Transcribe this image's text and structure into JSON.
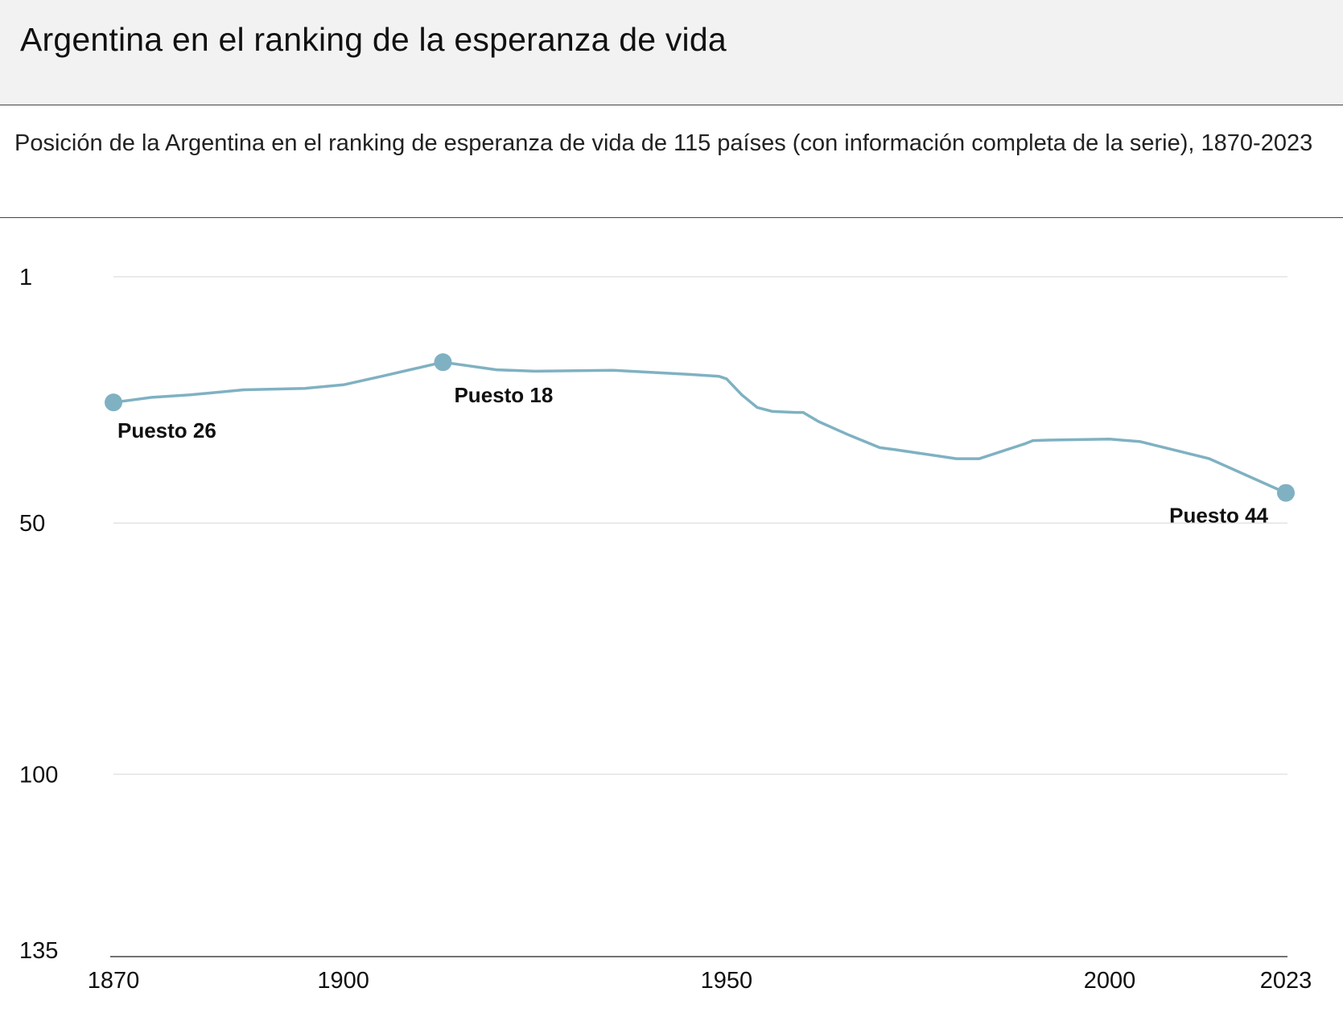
{
  "header": {
    "title": "Argentina en el ranking de la esperanza de vida"
  },
  "subtitle": "Posición de la Argentina en el ranking de esperanza de vida de 115 países (con información completa de la serie), 1870-2023",
  "colors": {
    "line": "#7fb1c2",
    "grid": "#e3e3e3",
    "axis": "#444444"
  },
  "chart_data": {
    "type": "line",
    "title": "Argentina en el ranking de la esperanza de vida",
    "xlabel": "",
    "ylabel": "",
    "y_inverted": true,
    "ylim": [
      1,
      135
    ],
    "xlim": [
      1870,
      2023
    ],
    "y_ticks": [
      "1",
      "50",
      "100",
      "135"
    ],
    "y_tick_values": [
      1,
      50,
      100,
      135
    ],
    "x_ticks": [
      "1870",
      "1900",
      "1950",
      "2000",
      "2023"
    ],
    "x_tick_values": [
      1870,
      1900,
      1950,
      2000,
      2023
    ],
    "grid": true,
    "series": [
      {
        "name": "Argentina",
        "x": [
          1870,
          1875,
          1880,
          1887,
          1895,
          1900,
          1905,
          1913,
          1920,
          1925,
          1935,
          1945,
          1949,
          1950,
          1952,
          1954,
          1956,
          1959,
          1960,
          1962,
          1966,
          1970,
          1972,
          1980,
          1983,
          1989,
          1990,
          1992,
          2000,
          2004,
          2013,
          2023
        ],
        "y": [
          26,
          25,
          24.5,
          23.5,
          23.2,
          22.5,
          20.8,
          18,
          19.5,
          19.8,
          19.6,
          20.4,
          20.8,
          21.3,
          24.5,
          27,
          27.8,
          28,
          28,
          29.8,
          32.5,
          35,
          35.4,
          37.2,
          37.2,
          34.2,
          33.6,
          33.5,
          33.3,
          33.8,
          37.2,
          44
        ]
      }
    ],
    "highlights": [
      {
        "x": 1870,
        "y": 26,
        "label": "Puesto 26"
      },
      {
        "x": 1913,
        "y": 18,
        "label": "Puesto 18"
      },
      {
        "x": 2023,
        "y": 44,
        "label": "Puesto 44"
      }
    ]
  }
}
